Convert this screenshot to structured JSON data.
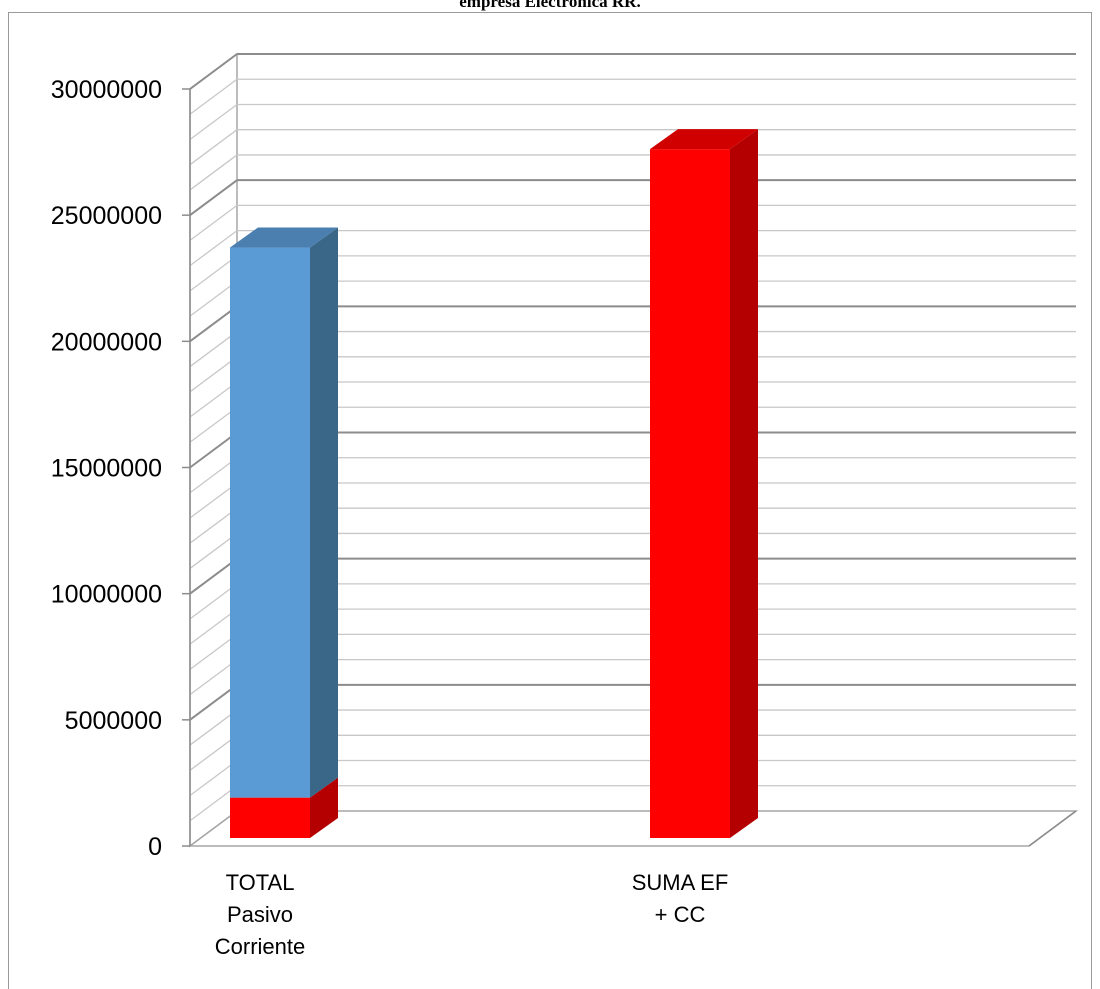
{
  "chart_data": {
    "type": "bar",
    "stacked": true,
    "three_d": true,
    "title": "empresa Electrónica RR.",
    "categories": [
      [
        "TOTAL",
        "Pasivo",
        "Corriente"
      ],
      [
        "SUMA EF",
        "+ CC"
      ]
    ],
    "series": [
      {
        "color": "#ff0000",
        "side_color": "#b40000",
        "top_color": "#d00000",
        "values": [
          1600000,
          27300000
        ]
      },
      {
        "color": "#5b9bd5",
        "side_color": "#3a6688",
        "top_color": "#4a7fb0",
        "values": [
          21800000,
          0
        ]
      }
    ],
    "ylim": [
      0,
      30000000
    ],
    "y_ticks": [
      "0",
      "5000000",
      "10000000",
      "15000000",
      "20000000",
      "25000000",
      "30000000"
    ],
    "y_tick_values": [
      0,
      5000000,
      10000000,
      15000000,
      20000000,
      25000000,
      30000000
    ],
    "minor_gridlines_per_major": 5,
    "grid": true,
    "legend": "none",
    "xlabel": "",
    "ylabel": ""
  }
}
